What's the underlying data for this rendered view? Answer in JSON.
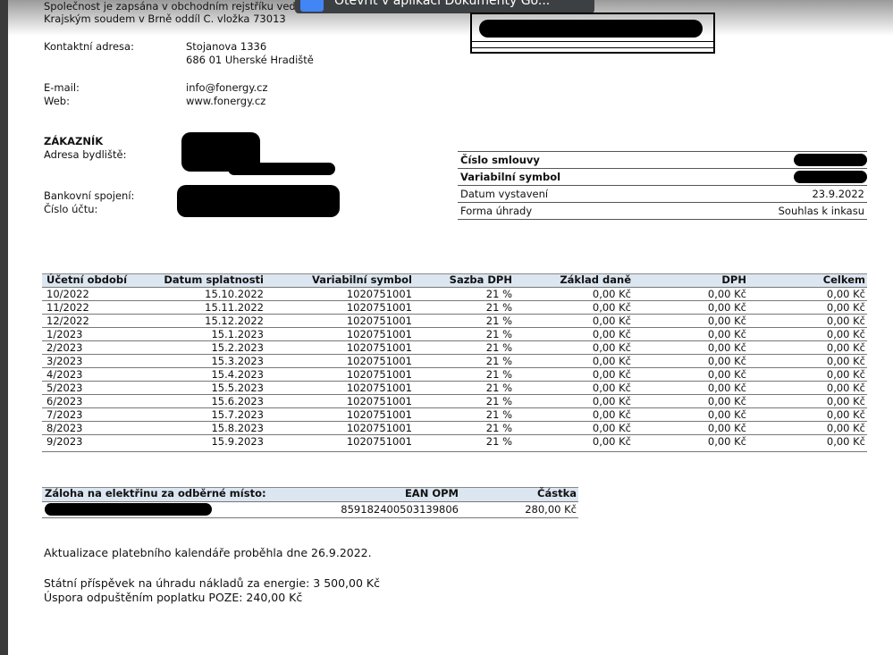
{
  "toolbar": {
    "open_button": "Otevřít v aplikaci Dokumenty Go..."
  },
  "company": {
    "registration": [
      "Společnost je zapsána v obchodním rejstříku vedeném",
      "Krajským soudem v Brně oddíl C. vložka 73013"
    ],
    "contact_label": "Kontaktní adresa:",
    "address": [
      "Stojanova 1336",
      "686 01 Uherské Hradiště"
    ],
    "email_label": "E-mail:",
    "email": "info@fonergy.cz",
    "web_label": "Web:",
    "web": "www.fonergy.cz"
  },
  "customer": {
    "title": "ZÁKAZNÍK",
    "address_label": "Adresa bydliště:",
    "bank_label": "Bankovní spojení:",
    "account_label": "Číslo účtu:"
  },
  "contract": {
    "rows": [
      {
        "label": "Číslo smlouvy"
      },
      {
        "label": "Variabilní symbol"
      },
      {
        "label": "Datum vystavení",
        "value": "23.9.2022"
      },
      {
        "label": "Forma úhrady",
        "value": "Souhlas k inkasu"
      }
    ]
  },
  "schedule": {
    "headers": [
      "Účetní období",
      "Datum splatnosti",
      "Variabilní symbol",
      "Sazba DPH",
      "Základ daně",
      "DPH",
      "Celkem"
    ],
    "rows": [
      [
        "10/2022",
        "15.10.2022",
        "1020751001",
        "21 %",
        "0,00 Kč",
        "0,00 Kč",
        "0,00 Kč"
      ],
      [
        "11/2022",
        "15.11.2022",
        "1020751001",
        "21 %",
        "0,00 Kč",
        "0,00 Kč",
        "0,00 Kč"
      ],
      [
        "12/2022",
        "15.12.2022",
        "1020751001",
        "21 %",
        "0,00 Kč",
        "0,00 Kč",
        "0,00 Kč"
      ],
      [
        "1/2023",
        "15.1.2023",
        "1020751001",
        "21 %",
        "0,00 Kč",
        "0,00 Kč",
        "0,00 Kč"
      ],
      [
        "2/2023",
        "15.2.2023",
        "1020751001",
        "21 %",
        "0,00 Kč",
        "0,00 Kč",
        "0,00 Kč"
      ],
      [
        "3/2023",
        "15.3.2023",
        "1020751001",
        "21 %",
        "0,00 Kč",
        "0,00 Kč",
        "0,00 Kč"
      ],
      [
        "4/2023",
        "15.4.2023",
        "1020751001",
        "21 %",
        "0,00 Kč",
        "0,00 Kč",
        "0,00 Kč"
      ],
      [
        "5/2023",
        "15.5.2023",
        "1020751001",
        "21 %",
        "0,00 Kč",
        "0,00 Kč",
        "0,00 Kč"
      ],
      [
        "6/2023",
        "15.6.2023",
        "1020751001",
        "21 %",
        "0,00 Kč",
        "0,00 Kč",
        "0,00 Kč"
      ],
      [
        "7/2023",
        "15.7.2023",
        "1020751001",
        "21 %",
        "0,00 Kč",
        "0,00 Kč",
        "0,00 Kč"
      ],
      [
        "8/2023",
        "15.8.2023",
        "1020751001",
        "21 %",
        "0,00 Kč",
        "0,00 Kč",
        "0,00 Kč"
      ],
      [
        "9/2023",
        "15.9.2023",
        "1020751001",
        "21 %",
        "0,00 Kč",
        "0,00 Kč",
        "0,00 Kč"
      ]
    ]
  },
  "deposit": {
    "headers": [
      "Záloha na elektřinu za odběrné místo:",
      "EAN OPM",
      "Částka"
    ],
    "ean": "859182400503139806",
    "amount": "280,00 Kč"
  },
  "notes": [
    "Aktualizace platebního kalendáře proběhla dne 26.9.2022.",
    "Státní příspěvek na úhradu nákladů za energie: 3 500,00 Kč",
    "Úspora odpuštěním poplatku POZE: 240,00 Kč"
  ]
}
